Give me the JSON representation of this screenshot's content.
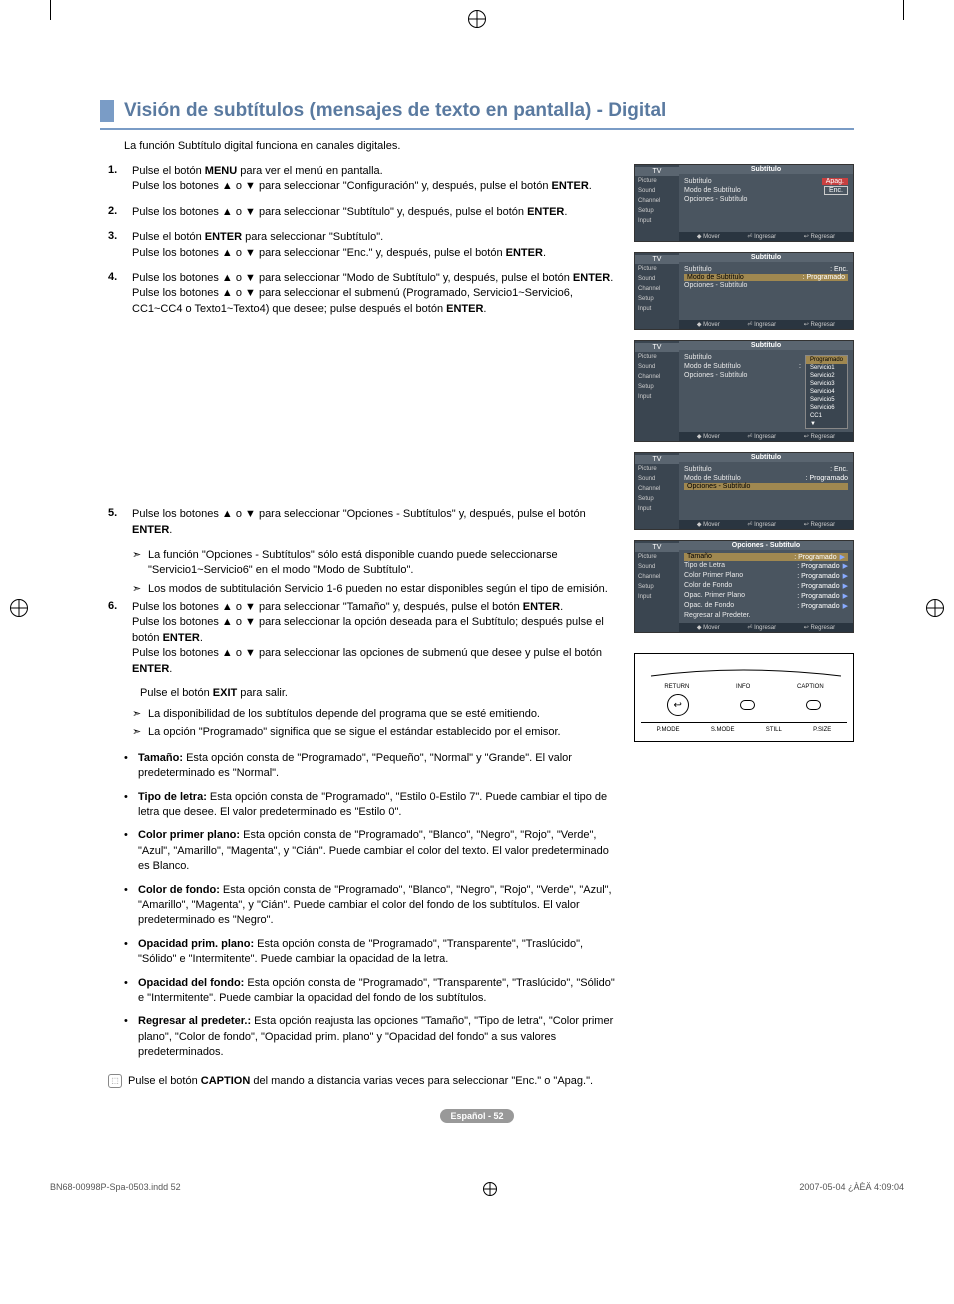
{
  "crop_marks": {
    "color": "#000000"
  },
  "title": "Visión de subtítulos (mensajes de texto en pantalla) - Digital",
  "title_style": {
    "color": "#5a7aa0",
    "accent": "#7a9cc6",
    "fontsize": 19
  },
  "intro": "La función Subtítulo digital funciona en canales digitales.",
  "steps": [
    {
      "n": "1.",
      "text": "Pulse el botón <b>MENU</b> para ver el menú en pantalla.<br>Pulse los botones ▲ o ▼ para seleccionar \"Configuración\" y, después, pulse el botón <b>ENTER</b>."
    },
    {
      "n": "2.",
      "text": "Pulse los botones ▲ o ▼ para seleccionar \"Subtítulo\" y, después, pulse el botón <b>ENTER</b>."
    },
    {
      "n": "3.",
      "text": "Pulse el botón <b>ENTER</b> para seleccionar \"Subtítulo\".<br>Pulse los botones ▲ o ▼ para seleccionar \"Enc.\" y, después, pulse el botón <b>ENTER</b>."
    },
    {
      "n": "4.",
      "text": "Pulse los botones ▲ o ▼ para seleccionar \"Modo de Subtítulo\" y, después, pulse el botón <b>ENTER</b>.<br>Pulse los botones ▲ o ▼ para seleccionar el submenú (Programado, Servicio1~Servicio6, CC1~CC4 o Texto1~Texto4) que desee; pulse después el botón <b>ENTER</b>."
    }
  ],
  "steps2": [
    {
      "n": "5.",
      "text": "Pulse los botones ▲ o ▼ para seleccionar \"Opciones - Subtítulos\" y, después, pulse el botón <b>ENTER</b>.",
      "notes": [
        "La función \"Opciones - Subtítulos\" sólo está disponible cuando puede seleccionarse \"Servicio1~Servicio6\" en el modo \"Modo de Subtítulo\".",
        "Los modos de subtitulación Servicio 1-6 pueden no estar disponibles según el tipo de emisión."
      ]
    },
    {
      "n": "6.",
      "text": "Pulse los botones ▲ o ▼ para seleccionar \"Tamaño\" y, después, pulse el botón <b>ENTER</b>.<br>Pulse los botones ▲ o ▼ para seleccionar la opción deseada para el Subtítulo; después pulse el botón <b>ENTER</b>.<br>Pulse los botones ▲ o ▼ para seleccionar las opciones de submenú que desee y pulse el botón <b>ENTER</b>.",
      "after": "Pulse el botón <b>EXIT</b> para salir.",
      "notes2": [
        "La disponibilidad de los subtítulos depende del programa que se esté emitiendo.",
        "La opción \"Programado\" significa que se sigue el estándar establecido por el emisor."
      ]
    }
  ],
  "bullets": [
    {
      "term": "Tamaño:",
      "desc": "Esta opción consta de \"Programado\", \"Pequeño\", \"Normal\" y \"Grande\". El valor predeterminado es \"Normal\"."
    },
    {
      "term": "Tipo de letra:",
      "desc": "Esta opción consta de \"Programado\", \"Estilo 0-Estilo 7\". Puede cambiar el tipo de letra que desee. El valor predeterminado es \"Estilo 0\"."
    },
    {
      "term": "Color primer plano:",
      "desc": "Esta opción consta de \"Programado\", \"Blanco\", \"Negro\", \"Rojo\", \"Verde\", \"Azul\", \"Amarillo\", \"Magenta\", y \"Cián\". Puede cambiar el color del texto. El valor predeterminado es Blanco."
    },
    {
      "term": "Color de fondo:",
      "desc": "Esta opción consta de \"Programado\", \"Blanco\", \"Negro\", \"Rojo\", \"Verde\", \"Azul\", \"Amarillo\", \"Magenta\", y \"Cián\". Puede cambiar el color del fondo de los subtítulos. El valor predeterminado es \"Negro\"."
    },
    {
      "term": "Opacidad prim. plano:",
      "desc": "Esta opción consta de \"Programado\", \"Transparente\", \"Traslúcido\", \"Sólido\" e \"Intermitente\". Puede cambiar la opacidad de la letra."
    },
    {
      "term": "Opacidad del fondo:",
      "desc": "Esta opción consta de \"Programado\", \"Transparente\", \"Traslúcido\", \"Sólido\" e \"Intermitente\". Puede cambiar la opacidad del fondo de los subtítulos."
    },
    {
      "term": "Regresar al predeter.:",
      "desc": "Esta opción reajusta las opciones \"Tamaño\", \"Tipo de letra\", \"Color primer plano\", \"Color de fondo\", \"Opacidad prim. plano\" y \"Opacidad del fondo\" a sus valores predeterminados."
    }
  ],
  "remote_note": "Pulse el botón <b>CAPTION</b> del mando a distancia varias veces para seleccionar \"Enc.\" o \"Apag.\".",
  "page_footer": "Español - 52",
  "doc_footer_left": "BN68-00998P-Spa-0503.indd   52",
  "doc_footer_right": "2007-05-04   ¿ÀÈÄ 4:09:04",
  "osd": {
    "side_items": [
      "Picture",
      "Sound",
      "Channel",
      "Setup",
      "Input"
    ],
    "foot": [
      "◆ Mover",
      "⏎ Ingresar",
      "↩ Regresar"
    ],
    "panels": [
      {
        "title": "Subtítulo",
        "lines": [
          {
            "lbl": "Subtítulo",
            "val": "Apag.",
            "hl": "val",
            "hlcolor": "#c84040"
          },
          {
            "lbl": "Modo de Subtítulo",
            "val": ": Enc.",
            "box": true
          },
          {
            "lbl": "Opciones - Subtítulo",
            "val": ""
          }
        ]
      },
      {
        "title": "Subtítulo",
        "lines": [
          {
            "lbl": "Subtítulo",
            "val": ": Enc."
          },
          {
            "lbl": "Modo de Subtítulo",
            "val": ": Programado",
            "hl": "row"
          },
          {
            "lbl": "Opciones - Subtítulo",
            "val": ""
          }
        ]
      },
      {
        "title": "Subtítulo",
        "lines": [
          {
            "lbl": "Subtítulo",
            "val": ""
          },
          {
            "lbl": "Modo de Subtítulo",
            "val": ":"
          },
          {
            "lbl": "Opciones - Subtítulo",
            "val": ""
          }
        ],
        "dropdown": [
          "Programado",
          "Servicio1",
          "Servicio2",
          "Servicio3",
          "Servicio4",
          "Servicio5",
          "Servicio6",
          "CC1",
          "▼"
        ],
        "dropdown_sel": 0
      },
      {
        "title": "Subtítulo",
        "lines": [
          {
            "lbl": "Subtítulo",
            "val": ": Enc."
          },
          {
            "lbl": "Modo de Subtítulo",
            "val": ": Programado"
          },
          {
            "lbl": "Opciones - Subtítulo",
            "val": "",
            "hl": "row"
          }
        ]
      },
      {
        "title": "Opciones - Subtítulo",
        "wide": true,
        "lines": [
          {
            "lbl": "Tamaño",
            "val": ": Programado",
            "arr": "▶",
            "hl": "row"
          },
          {
            "lbl": "Tipo de Letra",
            "val": ": Programado",
            "arr": "▶"
          },
          {
            "lbl": "Color Primer Plano",
            "val": ": Programado",
            "arr": "▶"
          },
          {
            "lbl": "Color de Fondo",
            "val": ": Programado",
            "arr": "▶"
          },
          {
            "lbl": "Opac. Primer Plano",
            "val": ": Programado",
            "arr": "▶"
          },
          {
            "lbl": "Opac. de Fondo",
            "val": ": Programado",
            "arr": "▶"
          },
          {
            "lbl": "Regresar al Predeter.",
            "val": ""
          }
        ]
      }
    ]
  },
  "remote_diagram": {
    "row1": [
      {
        "type": "lbl",
        "text": "RETURN"
      },
      {
        "type": "lbl",
        "text": "INFO"
      },
      {
        "type": "lbl",
        "text": "CAPTION"
      }
    ],
    "row2": [
      {
        "type": "btn",
        "glyph": "↩"
      },
      {
        "type": "oval",
        "text": ""
      },
      {
        "type": "oval",
        "text": ""
      }
    ],
    "row3": [
      {
        "type": "lbl",
        "text": "P.MODE"
      },
      {
        "type": "lbl",
        "text": "S.MODE"
      },
      {
        "type": "lbl",
        "text": "STILL"
      },
      {
        "type": "lbl",
        "text": "P.SIZE"
      }
    ]
  }
}
